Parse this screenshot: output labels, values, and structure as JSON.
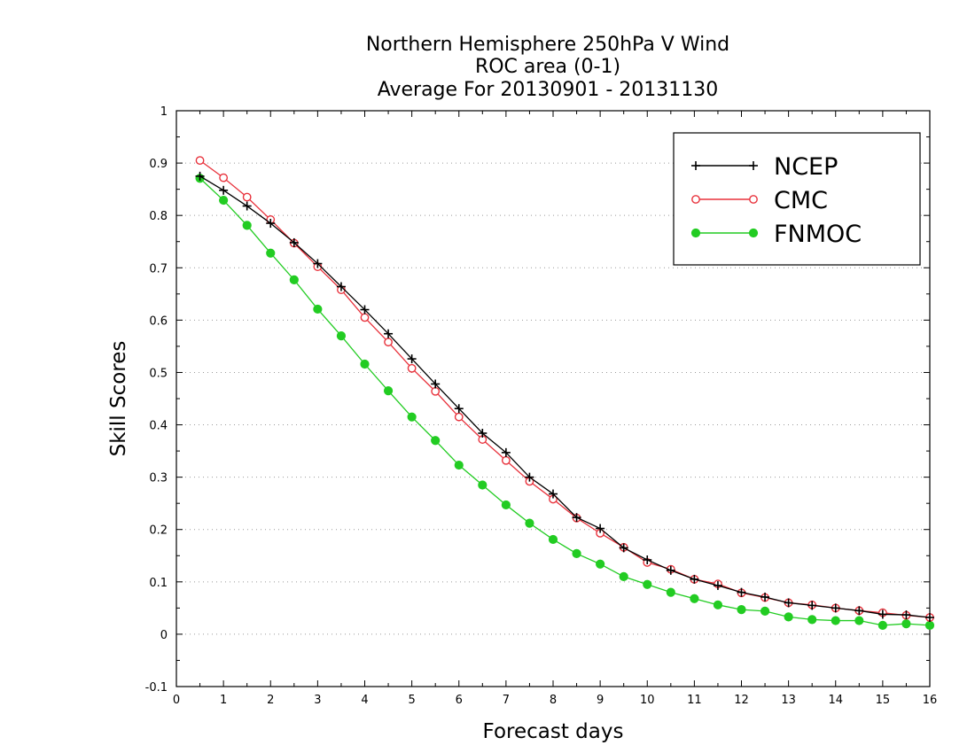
{
  "chart_data": {
    "type": "line",
    "title_lines": [
      "Northern Hemisphere 250hPa V Wind",
      "ROC area (0-1)",
      "Average For 20130901 - 20131130"
    ],
    "xlabel": "Forecast days",
    "ylabel": "Skill Scores",
    "xlim": [
      0,
      16
    ],
    "ylim": [
      -0.1,
      1
    ],
    "x_ticks": [
      0,
      1,
      2,
      3,
      4,
      5,
      6,
      7,
      8,
      9,
      10,
      11,
      12,
      13,
      14,
      15,
      16
    ],
    "y_ticks": [
      -0.1,
      0,
      0.1,
      0.2,
      0.3,
      0.4,
      0.5,
      0.6,
      0.7,
      0.8,
      0.9,
      1
    ],
    "y_tick_labels": [
      "-0.1",
      "0",
      "0.1",
      "0.2",
      "0.3",
      "0.4",
      "0.5",
      "0.6",
      "0.7",
      "0.8",
      "0.9",
      "1"
    ],
    "grid": "horizontal dotted",
    "legend_position": "top-right",
    "x": [
      0.5,
      1,
      1.5,
      2,
      2.5,
      3,
      3.5,
      4,
      4.5,
      5,
      5.5,
      6,
      6.5,
      7,
      7.5,
      8,
      8.5,
      9,
      9.5,
      10,
      10.5,
      11,
      11.5,
      12,
      12.5,
      13,
      13.5,
      14,
      14.5,
      15,
      15.5,
      16
    ],
    "series": [
      {
        "name": "NCEP",
        "color": "#000000",
        "marker": "plus",
        "values": [
          0.875,
          0.848,
          0.818,
          0.785,
          0.748,
          0.708,
          0.664,
          0.62,
          0.574,
          0.526,
          0.478,
          0.431,
          0.384,
          0.347,
          0.3,
          0.268,
          0.223,
          0.202,
          0.165,
          0.142,
          0.122,
          0.105,
          0.093,
          0.08,
          0.071,
          0.06,
          0.055,
          0.05,
          0.045,
          0.038,
          0.037,
          0.032
        ]
      },
      {
        "name": "CMC",
        "color": "#e8323c",
        "marker": "open-circle",
        "values": [
          0.905,
          0.872,
          0.835,
          0.792,
          0.747,
          0.702,
          0.658,
          0.605,
          0.558,
          0.508,
          0.464,
          0.415,
          0.372,
          0.332,
          0.292,
          0.258,
          0.222,
          0.193,
          0.166,
          0.137,
          0.124,
          0.105,
          0.096,
          0.079,
          0.07,
          0.06,
          0.056,
          0.05,
          0.045,
          0.041,
          0.036,
          0.032
        ]
      },
      {
        "name": "FNMOC",
        "color": "#22cc22",
        "marker": "filled-circle",
        "values": [
          0.871,
          0.829,
          0.781,
          0.728,
          0.677,
          0.621,
          0.57,
          0.516,
          0.465,
          0.415,
          0.37,
          0.323,
          0.285,
          0.247,
          0.212,
          0.181,
          0.154,
          0.134,
          0.11,
          0.095,
          0.08,
          0.068,
          0.056,
          0.047,
          0.044,
          0.033,
          0.028,
          0.026,
          0.026,
          0.017,
          0.02,
          0.017
        ]
      }
    ]
  }
}
